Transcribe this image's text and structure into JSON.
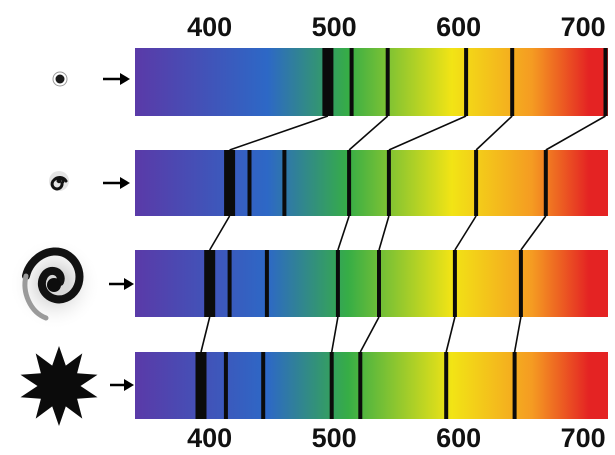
{
  "top_axis": {
    "labels": [
      "400",
      "500",
      "600",
      "700"
    ],
    "values": [
      400,
      500,
      600,
      700
    ]
  },
  "bottom_axis": {
    "labels": [
      "400",
      "500",
      "600",
      "700"
    ],
    "values": [
      400,
      500,
      600,
      700
    ]
  },
  "spectrum_range_nm": [
    340,
    720
  ],
  "colors": {
    "violet": "#5a3aa8",
    "blue": "#2d68c6",
    "green": "#36ad46",
    "yellow": "#f2e415",
    "orange": "#f59b22",
    "red": "#e42323",
    "line": "#0b0b0b"
  },
  "rows": [
    {
      "object_icon": "point-source-icon",
      "arrow_icon": "arrow-right-icon",
      "bands_nm": [
        {
          "nm": 495,
          "w": 3
        },
        {
          "nm": 514,
          "w": 1
        },
        {
          "nm": 543,
          "w": 1
        },
        {
          "nm": 606,
          "w": 1
        },
        {
          "nm": 643,
          "w": 1
        },
        {
          "nm": 718,
          "w": 1
        }
      ]
    },
    {
      "object_icon": "small-spiral-galaxy-icon",
      "arrow_icon": "arrow-right-icon",
      "bands_nm": [
        {
          "nm": 416,
          "w": 3
        },
        {
          "nm": 432,
          "w": 1
        },
        {
          "nm": 460,
          "w": 1
        },
        {
          "nm": 512,
          "w": 1
        },
        {
          "nm": 544,
          "w": 1
        },
        {
          "nm": 614,
          "w": 1
        },
        {
          "nm": 670,
          "w": 1
        }
      ]
    },
    {
      "object_icon": "large-spiral-galaxy-icon",
      "arrow_icon": "arrow-right-icon",
      "bands_nm": [
        {
          "nm": 400,
          "w": 3
        },
        {
          "nm": 416,
          "w": 1
        },
        {
          "nm": 446,
          "w": 1
        },
        {
          "nm": 503,
          "w": 1
        },
        {
          "nm": 536,
          "w": 1
        },
        {
          "nm": 597,
          "w": 1
        },
        {
          "nm": 650,
          "w": 1
        }
      ]
    },
    {
      "object_icon": "starburst-icon",
      "arrow_icon": "arrow-right-icon",
      "bands_nm": [
        {
          "nm": 393,
          "w": 3
        },
        {
          "nm": 413,
          "w": 1
        },
        {
          "nm": 443,
          "w": 1
        },
        {
          "nm": 498,
          "w": 1
        },
        {
          "nm": 521,
          "w": 1
        },
        {
          "nm": 590,
          "w": 1
        },
        {
          "nm": 645,
          "w": 1
        }
      ]
    }
  ],
  "shift_links": [
    {
      "from_row": 0,
      "to_row": 1,
      "pairs": [
        [
          0,
          0
        ],
        [
          2,
          3
        ],
        [
          3,
          4
        ],
        [
          4,
          5
        ],
        [
          5,
          6
        ]
      ]
    },
    {
      "from_row": 1,
      "to_row": 2,
      "pairs": [
        [
          0,
          0
        ],
        [
          3,
          3
        ],
        [
          4,
          4
        ],
        [
          5,
          5
        ],
        [
          6,
          6
        ]
      ]
    },
    {
      "from_row": 2,
      "to_row": 3,
      "pairs": [
        [
          0,
          0
        ],
        [
          3,
          3
        ],
        [
          4,
          4
        ],
        [
          5,
          5
        ],
        [
          6,
          6
        ]
      ]
    }
  ]
}
